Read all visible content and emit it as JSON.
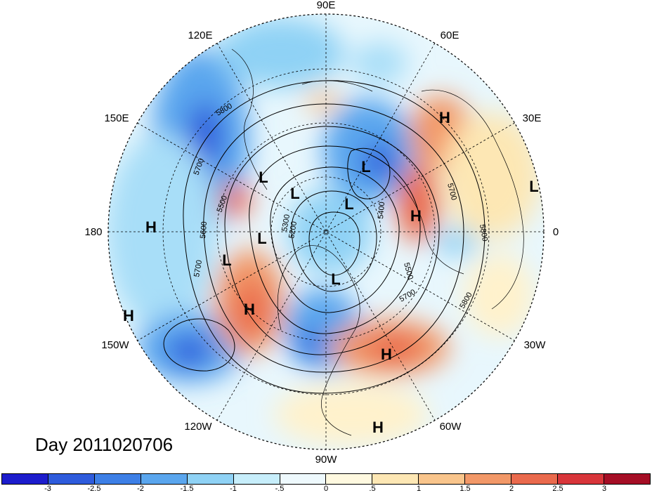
{
  "title_label": "Day 2011020706",
  "projection": "north-polar-stereographic",
  "longitude_labels": [
    {
      "key": "lon-90e",
      "text": "90E"
    },
    {
      "key": "lon-120e",
      "text": "120E"
    },
    {
      "key": "lon-60e",
      "text": "60E"
    },
    {
      "key": "lon-150e",
      "text": "150E"
    },
    {
      "key": "lon-30e",
      "text": "30E"
    },
    {
      "key": "lon-180",
      "text": "180"
    },
    {
      "key": "lon-0",
      "text": "0"
    },
    {
      "key": "lon-150w",
      "text": "150W"
    },
    {
      "key": "lon-30w",
      "text": "30W"
    },
    {
      "key": "lon-120w",
      "text": "120W"
    },
    {
      "key": "lon-60w",
      "text": "60W"
    },
    {
      "key": "lon-90w",
      "text": "90W"
    }
  ],
  "pressure_centers": [
    "H",
    "H",
    "H",
    "H",
    "H",
    "H",
    "H",
    "L",
    "L",
    "L",
    "L",
    "L",
    "L",
    "L",
    "L",
    "L"
  ],
  "contour_labels": [
    "5800",
    "5700",
    "5500",
    "5600",
    "5700",
    "5200",
    "5300",
    "5400",
    "5500",
    "5700",
    "5800",
    "5700",
    "5800"
  ],
  "colorbar": {
    "colors": [
      "#1c1ccc",
      "#2e5bdc",
      "#3d7fe6",
      "#5aa6ee",
      "#8fd2f5",
      "#c7eefb",
      "#eef9fd",
      "#fff9e0",
      "#fde7b4",
      "#f9c58c",
      "#f29868",
      "#ea6a4d",
      "#d8353a",
      "#a50e25"
    ],
    "tick_labels": [
      "-3",
      "-2.5",
      "-2",
      "-1.5",
      "-1",
      "-.5",
      "0",
      ".5",
      "1",
      "1.5",
      "2",
      "2.5",
      "3"
    ]
  }
}
